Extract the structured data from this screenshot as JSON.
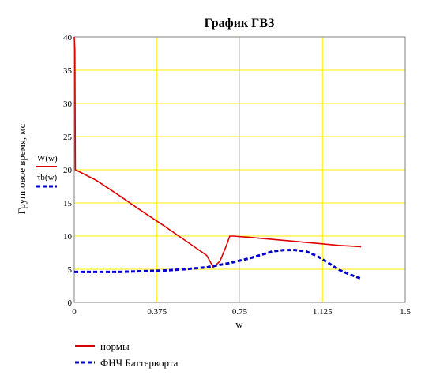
{
  "chart_data": {
    "type": "line",
    "title": "График ГВЗ",
    "xlabel": "w",
    "ylabel": "Групповое время, мс",
    "xlim": [
      0,
      1.5
    ],
    "ylim": [
      0,
      40
    ],
    "x_ticks": [
      0,
      0.375,
      0.75,
      1.125,
      1.5
    ],
    "x_tick_labels": [
      "0",
      "0.375",
      "0.75",
      "1.125",
      "1.5"
    ],
    "y_ticks": [
      0,
      5,
      10,
      15,
      20,
      25,
      30,
      35,
      40
    ],
    "y_tick_labels": [
      "0",
      "5",
      "10",
      "15",
      "20",
      "25",
      "30",
      "35",
      "40"
    ],
    "grid": true,
    "series_labels": [
      "W(w)",
      "τb(w)"
    ],
    "series": [
      {
        "name": "нормы",
        "color": "#dd0000",
        "style": "solid",
        "points": [
          [
            0,
            40
          ],
          [
            0.003,
            38
          ],
          [
            0.005,
            20
          ],
          [
            0.1,
            18.4
          ],
          [
            0.2,
            16.2
          ],
          [
            0.3,
            13.9
          ],
          [
            0.4,
            11.7
          ],
          [
            0.5,
            9.4
          ],
          [
            0.6,
            7.1
          ],
          [
            0.63,
            5.3
          ],
          [
            0.66,
            6.2
          ],
          [
            0.69,
            8.6
          ],
          [
            0.705,
            10
          ],
          [
            0.72,
            10
          ],
          [
            0.8,
            9.8
          ],
          [
            0.9,
            9.5
          ],
          [
            1.0,
            9.2
          ],
          [
            1.1,
            8.9
          ],
          [
            1.2,
            8.6
          ],
          [
            1.3,
            8.4
          ]
        ]
      },
      {
        "name": "ФНЧ Баттерворта",
        "color": "#0000cc",
        "style": "dashed",
        "points": [
          [
            0,
            4.6
          ],
          [
            0.1,
            4.6
          ],
          [
            0.2,
            4.6
          ],
          [
            0.3,
            4.7
          ],
          [
            0.4,
            4.8
          ],
          [
            0.5,
            5.0
          ],
          [
            0.6,
            5.3
          ],
          [
            0.7,
            5.9
          ],
          [
            0.8,
            6.7
          ],
          [
            0.85,
            7.2
          ],
          [
            0.9,
            7.7
          ],
          [
            0.95,
            7.9
          ],
          [
            1.0,
            7.9
          ],
          [
            1.05,
            7.7
          ],
          [
            1.1,
            7.0
          ],
          [
            1.15,
            6.0
          ],
          [
            1.2,
            4.9
          ],
          [
            1.25,
            4.2
          ],
          [
            1.3,
            3.6
          ]
        ]
      }
    ],
    "legend": {
      "placement": "bottom-left",
      "entries": [
        "нормы",
        "ФНЧ Баттерворта"
      ]
    },
    "axis_color": "#808080",
    "grid_color": "#ffee00"
  }
}
